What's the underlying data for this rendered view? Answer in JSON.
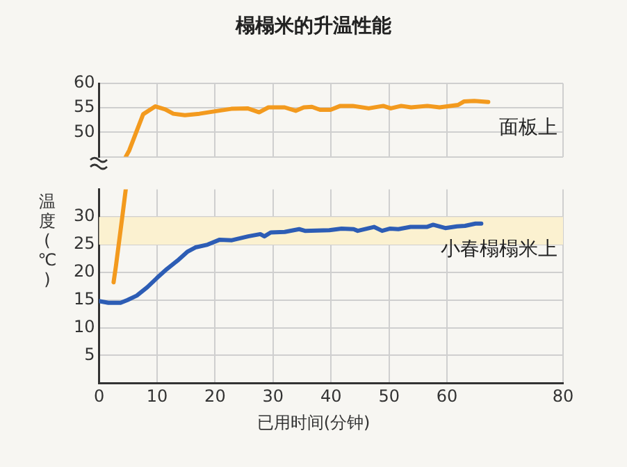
{
  "chart_data": [
    {
      "type": "line",
      "title": "榻榻米的升温性能",
      "tick_labels": "y",
      "xlim": [
        0,
        80
      ],
      "xticks": [
        0,
        10,
        20,
        30,
        40,
        50,
        60,
        80
      ],
      "ylim": [
        45,
        60
      ],
      "yticks": [
        {
          "value": 45,
          "label": null
        },
        50,
        55,
        60
      ],
      "grid": true,
      "legend": false,
      "marker": "none",
      "line_style": "solid",
      "series": [
        {
          "name": "面板上",
          "color": "#f39a1e",
          "x": [
            4.6,
            5.2,
            7.6,
            9.7,
            11.4,
            12.8,
            14.8,
            17.3,
            20,
            22.8,
            25.6,
            27.6,
            29.2,
            32,
            33.9,
            35.3,
            36.7,
            38.1,
            39.9,
            41.6,
            43.7,
            46.5,
            49,
            50.3,
            52.1,
            53.8,
            56.6,
            58.7,
            61.9,
            62.9,
            64.7,
            67.1
          ],
          "values": [
            45,
            46.3,
            53.7,
            55.3,
            54.7,
            53.8,
            53.5,
            53.8,
            54.3,
            54.8,
            54.9,
            54.1,
            55.1,
            55.1,
            54.4,
            55.1,
            55.2,
            54.6,
            54.6,
            55.4,
            55.4,
            54.9,
            55.4,
            54.9,
            55.4,
            55.1,
            55.4,
            55.1,
            55.6,
            56.3,
            56.4,
            56.2
          ]
        }
      ]
    },
    {
      "type": "line",
      "xlabel": "已用时间(分钟)",
      "ylabel": "温度(℃)",
      "xlim": [
        0,
        80
      ],
      "xticks": [
        0,
        10,
        20,
        30,
        40,
        50,
        60,
        80
      ],
      "ylim": [
        0,
        35
      ],
      "yticks": [
        5,
        10,
        15,
        20,
        25,
        30
      ],
      "grid": true,
      "legend": false,
      "marker": "none",
      "line_style": "solid",
      "bands": [
        {
          "axis": "y",
          "from": 25,
          "to": 30,
          "color": "#fbf1d0"
        }
      ],
      "series": [
        {
          "color": "#f39a1e",
          "x": [
            2.5,
            2.9,
            4.0,
            4.6
          ],
          "values": [
            18.2,
            21.1,
            30,
            35
          ]
        },
        {
          "name": "小春榻榻米上",
          "color": "#2d5db5",
          "x": [
            0,
            1.6,
            3.7,
            4.9,
            6.5,
            8.3,
            10,
            11.7,
            13.5,
            15.2,
            16.6,
            18.7,
            20.8,
            22.9,
            25.7,
            27.8,
            28.5,
            29.6,
            32,
            34.5,
            35.5,
            39.7,
            41.8,
            43.9,
            44.6,
            47.4,
            48.8,
            50.2,
            51.6,
            53.7,
            56.5,
            57.6,
            59.7,
            61.7,
            63.1,
            64.9,
            65.9
          ],
          "values": [
            14.8,
            14.5,
            14.5,
            15,
            15.8,
            17.3,
            19,
            20.6,
            22.1,
            23.7,
            24.5,
            25,
            25.9,
            25.8,
            26.5,
            26.9,
            26.5,
            27.2,
            27.3,
            27.8,
            27.5,
            27.6,
            27.9,
            27.8,
            27.5,
            28.2,
            27.5,
            27.9,
            27.8,
            28.2,
            28.2,
            28.6,
            28,
            28.3,
            28.4,
            28.8,
            28.8
          ]
        }
      ]
    }
  ]
}
